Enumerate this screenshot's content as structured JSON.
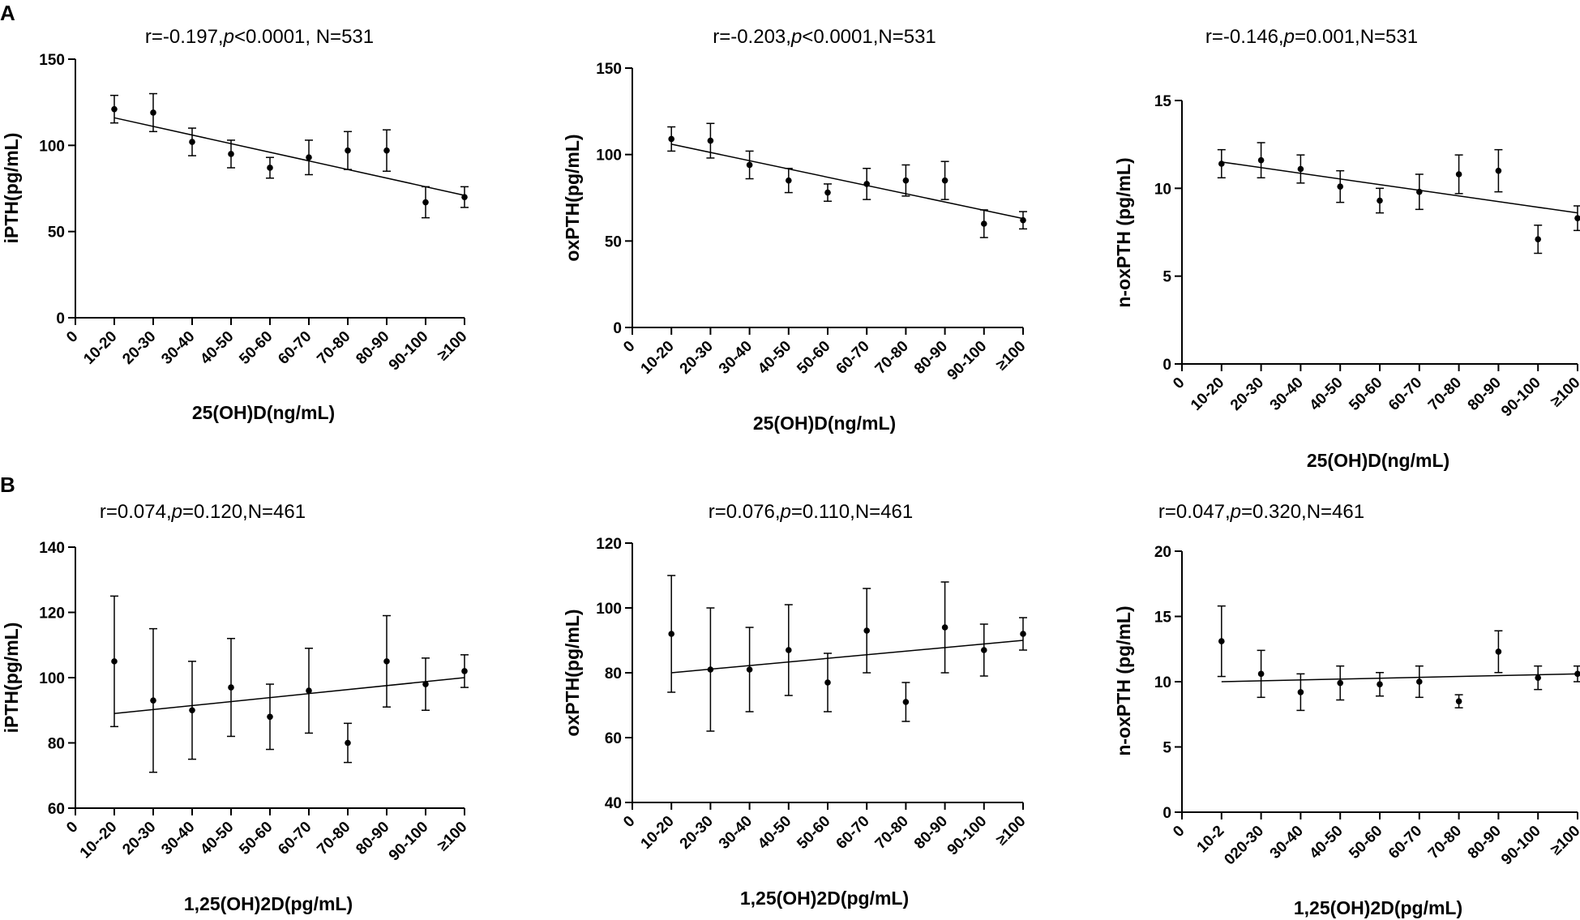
{
  "panel_labels": [
    "A",
    "B"
  ],
  "chart_data": [
    {
      "type": "scatter",
      "panel": "A",
      "stat": {
        "r": "r=-0.197,",
        "p": "p",
        "rest": "<0.0001,  N=531"
      },
      "xlabel": "25(OH)D(ng/mL)",
      "ylabel": "iPTH(pg/mL)",
      "categories": [
        "0",
        "10-20",
        "20-30",
        "30-40",
        "40-50",
        "50-60",
        "60-70",
        "70-80",
        "80-90",
        "90-100",
        "≥100"
      ],
      "ylim": [
        0,
        150
      ],
      "yticks": [
        0,
        50,
        100,
        150
      ],
      "x_index": [
        1,
        2,
        3,
        4,
        5,
        6,
        7,
        8,
        9,
        10
      ],
      "y": [
        121,
        119,
        102,
        95,
        87,
        93,
        97,
        97,
        67,
        70
      ],
      "err": [
        8,
        11,
        8,
        8,
        6,
        10,
        11,
        12,
        9,
        6
      ],
      "fit": [
        116,
        71
      ]
    },
    {
      "type": "scatter",
      "panel": "A",
      "stat": {
        "r": "r=-0.203,",
        "p": "p",
        "rest": "<0.0001,N=531"
      },
      "xlabel": "25(OH)D(ng/mL)",
      "ylabel": "oxPTH(pg/mL)",
      "categories": [
        "0",
        "10-20",
        "20-30",
        "30-40",
        "40-50",
        "50-60",
        "60-70",
        "70-80",
        "80-90",
        "90-100",
        "≥100"
      ],
      "ylim": [
        0,
        150
      ],
      "yticks": [
        0,
        50,
        100,
        150
      ],
      "x_index": [
        1,
        2,
        3,
        4,
        5,
        6,
        7,
        8,
        9,
        10
      ],
      "y": [
        109,
        108,
        94,
        85,
        78,
        83,
        85,
        85,
        60,
        62
      ],
      "err": [
        7,
        10,
        8,
        7,
        5,
        9,
        9,
        11,
        8,
        5
      ],
      "fit": [
        106,
        63
      ]
    },
    {
      "type": "scatter",
      "panel": "A",
      "stat": {
        "r": "r=-0.146,",
        "p": "p",
        "rest": "=0.001,N=531"
      },
      "xlabel": "25(OH)D(ng/mL)",
      "ylabel": "n-oxPTH (pg/mL)",
      "categories": [
        "0",
        "10-20",
        "20-30",
        "30-40",
        "40-50",
        "50-60",
        "60-70",
        "70-80",
        "80-90",
        "90-100",
        "≥100"
      ],
      "ylim": [
        0,
        15
      ],
      "yticks": [
        0,
        5,
        10,
        15
      ],
      "x_index": [
        1,
        2,
        3,
        4,
        5,
        6,
        7,
        8,
        9,
        10
      ],
      "y": [
        11.4,
        11.6,
        11.1,
        10.1,
        9.3,
        9.8,
        10.8,
        11.0,
        7.1,
        8.3
      ],
      "err": [
        0.8,
        1.0,
        0.8,
        0.9,
        0.7,
        1.0,
        1.1,
        1.2,
        0.8,
        0.7
      ],
      "fit": [
        11.5,
        8.6
      ]
    },
    {
      "type": "scatter",
      "panel": "B",
      "stat": {
        "r": "r=0.074,",
        "p": "p",
        "rest": "=0.120,N=461"
      },
      "xlabel": "1,25(OH)2D(pg/mL)",
      "ylabel": "iPTH(pg/mL)",
      "categories": [
        "0",
        "10--20",
        "20-30",
        "30-40",
        "40-50",
        "50-60",
        "60-70",
        "70-80",
        "80-90",
        "90-100",
        "≥100"
      ],
      "ylim": [
        60,
        140
      ],
      "yticks": [
        60,
        80,
        100,
        120,
        140
      ],
      "x_index": [
        1,
        2,
        3,
        4,
        5,
        6,
        7,
        8,
        9,
        10
      ],
      "y": [
        105,
        93,
        90,
        97,
        88,
        96,
        80,
        105,
        98,
        102
      ],
      "err": [
        20,
        22,
        15,
        15,
        10,
        13,
        6,
        14,
        8,
        5
      ],
      "fit": [
        89,
        100
      ]
    },
    {
      "type": "scatter",
      "panel": "B",
      "stat": {
        "r": "r=0.076,",
        "p": "p",
        "rest": "=0.110,N=461"
      },
      "xlabel": "1,25(OH)2D(pg/mL)",
      "ylabel": "oxPTH(pg/mL)",
      "categories": [
        "0",
        "10-20",
        "20-30",
        "30-40",
        "40-50",
        "50-60",
        "60-70",
        "70-80",
        "80-90",
        "90-100",
        "≥100"
      ],
      "ylim": [
        40,
        120
      ],
      "yticks": [
        40,
        60,
        80,
        100,
        120
      ],
      "x_index": [
        1,
        2,
        3,
        4,
        5,
        6,
        7,
        8,
        9,
        10
      ],
      "y": [
        92,
        81,
        81,
        87,
        77,
        93,
        71,
        94,
        87,
        92
      ],
      "err": [
        18,
        19,
        13,
        14,
        9,
        13,
        6,
        14,
        8,
        5
      ],
      "fit": [
        80,
        90
      ]
    },
    {
      "type": "scatter",
      "panel": "B",
      "stat": {
        "r": "r=0.047,",
        "p": "p",
        "rest": "=0.320,N=461"
      },
      "xlabel": "1,25(OH)2D(pg/mL)",
      "ylabel": "n-oxPTH (pg/mL)",
      "categories": [
        "0",
        "10-2",
        "020-30",
        "30-40",
        "40-50",
        "50-60",
        "60-70",
        "70-80",
        "80-90",
        "90-100",
        "≥100"
      ],
      "ylim": [
        0,
        20
      ],
      "yticks": [
        0,
        5,
        10,
        15,
        20
      ],
      "x_index": [
        1,
        2,
        3,
        4,
        5,
        6,
        7,
        8,
        9,
        10
      ],
      "y": [
        13.1,
        10.6,
        9.2,
        9.9,
        9.8,
        10.0,
        8.5,
        12.3,
        10.3,
        10.6
      ],
      "err": [
        2.7,
        1.8,
        1.4,
        1.3,
        0.9,
        1.2,
        0.5,
        1.6,
        0.9,
        0.6
      ],
      "fit": [
        10.0,
        10.6
      ]
    }
  ]
}
